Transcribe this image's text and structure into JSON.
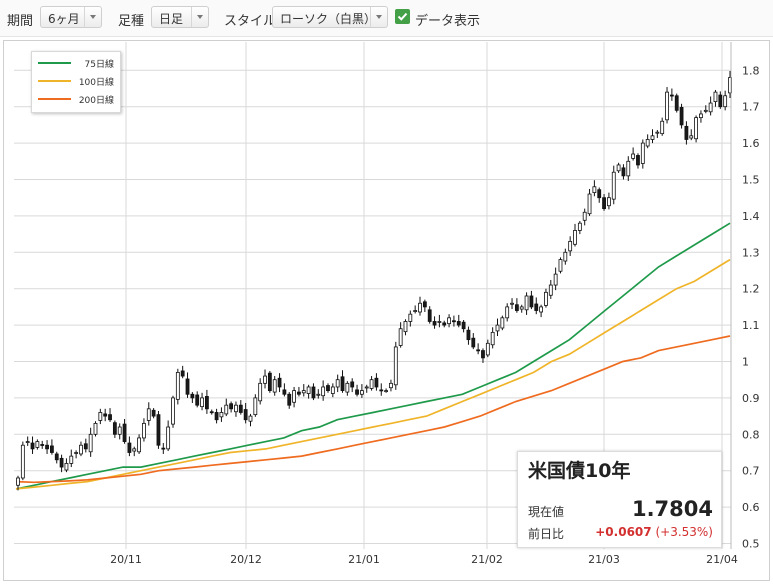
{
  "toolbar": {
    "period_label": "期間",
    "period_value": "6ヶ月",
    "ashi_label": "足種",
    "ashi_value": "日足",
    "style_label": "スタイル",
    "style_value": "ローソク（白黒）",
    "data_display_label": "データ表示",
    "data_display_checked": true
  },
  "colors": {
    "ma75": "#1e9a4a",
    "ma100": "#f0b429",
    "ma200": "#ef6b1f",
    "candle_up_fill": "#ffffff",
    "candle_down_fill": "#1a1a1a",
    "grid": "#d9d9d9",
    "change_positive": "#d32f2f",
    "checkbox": "#43a047"
  },
  "info": {
    "title": "米国債10年",
    "price_label": "現在値",
    "price": "1.7804",
    "change_label": "前日比",
    "change": "+0.0607",
    "change_pct": "(+3.53%)"
  },
  "chart_data": {
    "type": "candlestick",
    "title": "米国債10年",
    "y_ticks": [
      "0.5",
      "0.6",
      "0.7",
      "0.8",
      "0.9",
      "1",
      "1.1",
      "1.2",
      "1.3",
      "1.4",
      "1.5",
      "1.6",
      "1.7",
      "1.8"
    ],
    "x_ticks": [
      "20/11",
      "20/12",
      "21/01",
      "21/02",
      "21/03",
      "21/04"
    ],
    "ylim": [
      0.5,
      1.84
    ],
    "grid": true,
    "legend_position": "top-left",
    "close": [
      0.68,
      0.77,
      0.78,
      0.76,
      0.78,
      0.77,
      0.76,
      0.75,
      0.73,
      0.71,
      0.72,
      0.74,
      0.75,
      0.77,
      0.76,
      0.8,
      0.83,
      0.86,
      0.85,
      0.84,
      0.8,
      0.82,
      0.78,
      0.75,
      0.76,
      0.79,
      0.83,
      0.87,
      0.85,
      0.77,
      0.76,
      0.82,
      0.9,
      0.97,
      0.96,
      0.91,
      0.9,
      0.88,
      0.9,
      0.87,
      0.86,
      0.84,
      0.86,
      0.88,
      0.87,
      0.88,
      0.86,
      0.84,
      0.85,
      0.9,
      0.94,
      0.96,
      0.92,
      0.95,
      0.93,
      0.91,
      0.88,
      0.92,
      0.91,
      0.92,
      0.93,
      0.9,
      0.91,
      0.93,
      0.92,
      0.93,
      0.95,
      0.92,
      0.94,
      0.93,
      0.91,
      0.92,
      0.93,
      0.95,
      0.93,
      0.92,
      0.92,
      0.94,
      1.04,
      1.09,
      1.11,
      1.13,
      1.14,
      1.16,
      1.15,
      1.11,
      1.1,
      1.11,
      1.1,
      1.12,
      1.11,
      1.1,
      1.09,
      1.06,
      1.04,
      1.03,
      1.01,
      1.05,
      1.08,
      1.1,
      1.12,
      1.15,
      1.16,
      1.14,
      1.15,
      1.18,
      1.15,
      1.14,
      1.15,
      1.19,
      1.21,
      1.24,
      1.28,
      1.3,
      1.33,
      1.36,
      1.38,
      1.41,
      1.46,
      1.48,
      1.45,
      1.42,
      1.45,
      1.52,
      1.54,
      1.51,
      1.55,
      1.57,
      1.54,
      1.6,
      1.61,
      1.62,
      1.63,
      1.66,
      1.74,
      1.73,
      1.69,
      1.65,
      1.61,
      1.62,
      1.67,
      1.68,
      1.69,
      1.71,
      1.74,
      1.7,
      1.73,
      1.78
    ],
    "series": [
      {
        "name": "75日線",
        "values": [
          0.65,
          0.66,
          0.67,
          0.68,
          0.69,
          0.7,
          0.71,
          0.71,
          0.72,
          0.73,
          0.74,
          0.75,
          0.76,
          0.77,
          0.78,
          0.79,
          0.81,
          0.82,
          0.84,
          0.85,
          0.86,
          0.87,
          0.88,
          0.89,
          0.9,
          0.91,
          0.93,
          0.95,
          0.97,
          1.0,
          1.03,
          1.06,
          1.1,
          1.14,
          1.18,
          1.22,
          1.26,
          1.29,
          1.32,
          1.35,
          1.38
        ]
      },
      {
        "name": "100日線",
        "values": [
          0.65,
          0.655,
          0.66,
          0.665,
          0.67,
          0.68,
          0.69,
          0.7,
          0.71,
          0.72,
          0.73,
          0.74,
          0.75,
          0.755,
          0.76,
          0.77,
          0.78,
          0.79,
          0.8,
          0.81,
          0.82,
          0.83,
          0.84,
          0.85,
          0.87,
          0.89,
          0.91,
          0.93,
          0.95,
          0.97,
          1.0,
          1.02,
          1.05,
          1.08,
          1.11,
          1.14,
          1.17,
          1.2,
          1.22,
          1.25,
          1.28
        ]
      },
      {
        "name": "200日線",
        "values": [
          0.67,
          0.668,
          0.67,
          0.672,
          0.675,
          0.68,
          0.685,
          0.69,
          0.7,
          0.705,
          0.71,
          0.715,
          0.72,
          0.725,
          0.73,
          0.735,
          0.74,
          0.75,
          0.76,
          0.77,
          0.78,
          0.79,
          0.8,
          0.81,
          0.82,
          0.835,
          0.85,
          0.87,
          0.89,
          0.905,
          0.92,
          0.94,
          0.96,
          0.98,
          1.0,
          1.01,
          1.03,
          1.04,
          1.05,
          1.06,
          1.07
        ]
      }
    ]
  }
}
